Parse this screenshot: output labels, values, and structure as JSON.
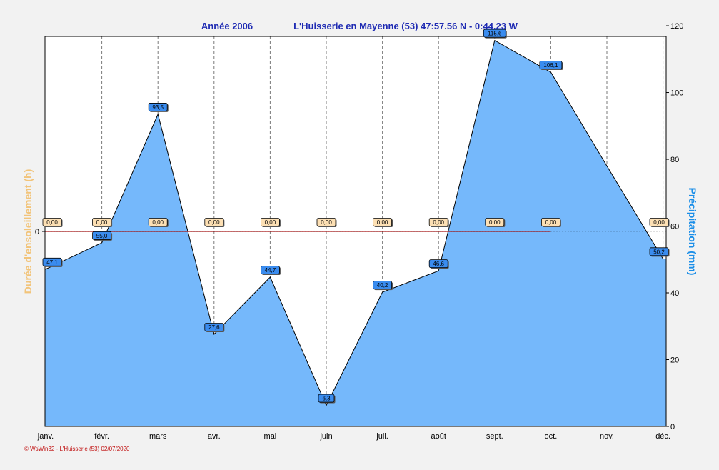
{
  "header": {
    "year_label": "Année  2006",
    "station_label": "L'Huisserie en Mayenne (53) 47:57.56 N - 0:44.23 W"
  },
  "footer": {
    "text": "© WsWin32 - L'Huisserie (53)  02/07/2020"
  },
  "colors": {
    "title": "#1f2bb3",
    "precip_fill": "#75b8fb",
    "precip_label_bg": "#3a8cef",
    "sun_label_bg": "#fde0b4",
    "sun_line": "#b01515",
    "sun_axis_title": "#f2c47a",
    "precip_axis_title": "#1a8ee8",
    "footer": "#c01010"
  },
  "chart_data": {
    "type": "area",
    "categories": [
      "janv.",
      "févr.",
      "mars",
      "avr.",
      "mai",
      "juin",
      "juil.",
      "août",
      "sept.",
      "oct.",
      "nov.",
      "déc."
    ],
    "series": [
      {
        "name": "Précipitation",
        "unit": "mm",
        "axis": "right",
        "values": [
          47.1,
          55.0,
          93.5,
          27.6,
          44.7,
          6.3,
          40.2,
          46.6,
          115.6,
          106.1,
          78.0,
          50.2
        ],
        "labels": [
          "47,1",
          "55,0",
          "93,5",
          "27,6",
          "44,7",
          "6,3",
          "40,2",
          "46,6",
          "115,6",
          "106,1",
          null,
          "50,2"
        ]
      },
      {
        "name": "Durée d'ensoleillement",
        "unit": "h",
        "axis": "left",
        "values": [
          0,
          0,
          0,
          0,
          0,
          0,
          0,
          0,
          0,
          0,
          null,
          0
        ],
        "labels": [
          "0,00",
          "0,00",
          "0,00",
          "0,00",
          "0,00",
          "0,00",
          "0,00",
          "0,00",
          "0,00",
          "0,00",
          null,
          "0,00"
        ]
      }
    ],
    "y_right": {
      "label": "Précipitation  (mm)",
      "ylim": [
        0,
        116.8
      ],
      "ticks": [
        0,
        20,
        40,
        60,
        80,
        100,
        120
      ]
    },
    "y_left": {
      "label": "Durée d'ensoleillement  (h)",
      "ticks": [
        0
      ]
    },
    "grid": "vertical dashed"
  }
}
